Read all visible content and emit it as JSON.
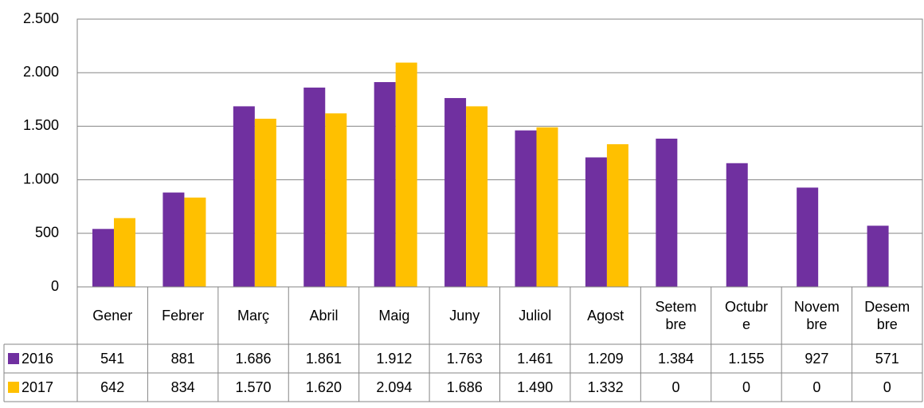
{
  "chart_data": {
    "type": "bar",
    "categories": [
      "Gener",
      "Febrer",
      "Març",
      "Abril",
      "Maig",
      "Juny",
      "Juliol",
      "Agost",
      "Setembre",
      "Octubre",
      "Novembre",
      "Desembre"
    ],
    "series": [
      {
        "name": "2016",
        "color": "#7030a0",
        "values": [
          541,
          881,
          1686,
          1861,
          1912,
          1763,
          1461,
          1209,
          1384,
          1155,
          927,
          571
        ],
        "value_labels": [
          "541",
          "881",
          "1.686",
          "1.861",
          "1.912",
          "1.763",
          "1.461",
          "1.209",
          "1.384",
          "1.155",
          "927",
          "571"
        ]
      },
      {
        "name": "2017",
        "color": "#ffc000",
        "values": [
          642,
          834,
          1570,
          1620,
          2094,
          1686,
          1490,
          1332,
          0,
          0,
          0,
          0
        ],
        "value_labels": [
          "642",
          "834",
          "1.570",
          "1.620",
          "2.094",
          "1.686",
          "1.490",
          "1.332",
          "0",
          "0",
          "0",
          "0"
        ]
      }
    ],
    "ylim": [
      0,
      2500
    ],
    "yticks": [
      0,
      500,
      {
        "value": 1000,
        "label": "1.000"
      },
      {
        "value": 1500,
        "label": "1.500"
      },
      {
        "value": 2000,
        "label": "2.000"
      },
      {
        "value": 2500,
        "label": "2.500"
      }
    ],
    "grid": true
  }
}
